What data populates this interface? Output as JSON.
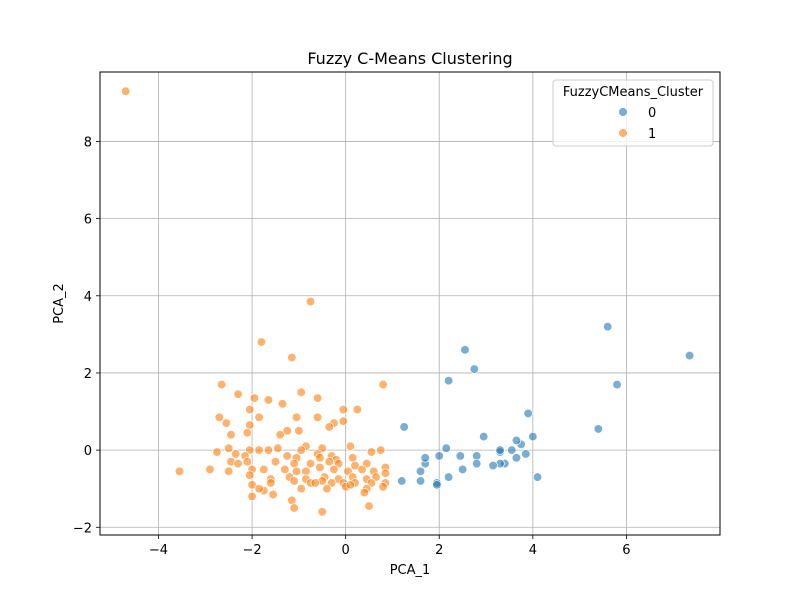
{
  "chart_data": {
    "type": "scatter",
    "title": "Fuzzy C-Means Clustering",
    "xlabel": "PCA_1",
    "ylabel": "PCA_2",
    "xlim": [
      -5.25,
      8.0
    ],
    "ylim": [
      -2.2,
      9.8
    ],
    "xticks": [
      -4,
      -2,
      0,
      2,
      4,
      6
    ],
    "yticks": [
      -2,
      0,
      2,
      4,
      6,
      8
    ],
    "tick_labels_x": [
      "−4",
      "−2",
      "0",
      "2",
      "4",
      "6"
    ],
    "tick_labels_y": [
      "−2",
      "0",
      "2",
      "4",
      "6",
      "8"
    ],
    "grid": true,
    "legend": {
      "title": "FuzzyCMeans_Cluster",
      "placement": "top-right",
      "entries": [
        {
          "label": "0",
          "color": "#1f77b4"
        },
        {
          "label": "1",
          "color": "#ff7f0e"
        }
      ]
    },
    "series": [
      {
        "name": "0",
        "color": "#1f77b4",
        "points": [
          [
            7.35,
            2.45
          ],
          [
            5.6,
            3.2
          ],
          [
            5.8,
            1.7
          ],
          [
            5.4,
            0.55
          ],
          [
            4.1,
            -0.7
          ],
          [
            4.0,
            0.35
          ],
          [
            3.9,
            0.95
          ],
          [
            3.85,
            -0.1
          ],
          [
            3.75,
            0.15
          ],
          [
            3.65,
            0.25
          ],
          [
            3.65,
            -0.2
          ],
          [
            3.55,
            0.0
          ],
          [
            3.4,
            -0.35
          ],
          [
            3.3,
            -0.35
          ],
          [
            3.3,
            -0.05
          ],
          [
            3.3,
            0.0
          ],
          [
            3.15,
            -0.4
          ],
          [
            2.95,
            0.35
          ],
          [
            2.8,
            -0.15
          ],
          [
            2.8,
            -0.35
          ],
          [
            2.75,
            2.1
          ],
          [
            2.55,
            2.6
          ],
          [
            2.5,
            -0.5
          ],
          [
            2.45,
            -0.15
          ],
          [
            2.2,
            1.8
          ],
          [
            2.2,
            -0.7
          ],
          [
            2.15,
            0.05
          ],
          [
            2.0,
            -0.15
          ],
          [
            1.95,
            -0.85
          ],
          [
            1.95,
            -0.9
          ],
          [
            1.7,
            -0.35
          ],
          [
            1.7,
            -0.2
          ],
          [
            1.6,
            -0.55
          ],
          [
            1.6,
            -0.8
          ],
          [
            1.25,
            0.6
          ],
          [
            1.2,
            -0.8
          ]
        ]
      },
      {
        "name": "1",
        "color": "#ff7f0e",
        "points": [
          [
            -4.7,
            9.3
          ],
          [
            -0.75,
            3.85
          ],
          [
            -1.8,
            2.8
          ],
          [
            -1.15,
            2.4
          ],
          [
            -2.65,
            1.7
          ],
          [
            0.8,
            1.7
          ],
          [
            -2.3,
            1.45
          ],
          [
            -1.95,
            1.35
          ],
          [
            -1.65,
            1.3
          ],
          [
            -0.95,
            1.5
          ],
          [
            -0.6,
            1.35
          ],
          [
            -1.35,
            1.2
          ],
          [
            -2.05,
            1.05
          ],
          [
            -0.05,
            1.05
          ],
          [
            0.25,
            1.05
          ],
          [
            -2.7,
            0.85
          ],
          [
            -1.85,
            0.85
          ],
          [
            -1.05,
            0.85
          ],
          [
            -0.6,
            0.85
          ],
          [
            -0.25,
            0.7
          ],
          [
            -0.05,
            0.75
          ],
          [
            -2.55,
            0.7
          ],
          [
            -2.05,
            0.65
          ],
          [
            -0.35,
            0.6
          ],
          [
            -2.45,
            0.4
          ],
          [
            -2.1,
            0.45
          ],
          [
            -1.25,
            0.5
          ],
          [
            -1.0,
            0.5
          ],
          [
            -1.4,
            0.4
          ],
          [
            0.1,
            0.1
          ],
          [
            -0.5,
            0.05
          ],
          [
            -0.85,
            0.1
          ],
          [
            -2.5,
            0.05
          ],
          [
            -2.05,
            0.0
          ],
          [
            -1.85,
            0.0
          ],
          [
            -1.65,
            0.0
          ],
          [
            -1.45,
            0.05
          ],
          [
            -0.95,
            0.0
          ],
          [
            -0.6,
            -0.1
          ],
          [
            -0.3,
            -0.15
          ],
          [
            0.55,
            -0.05
          ],
          [
            0.75,
            0.0
          ],
          [
            -2.75,
            -0.05
          ],
          [
            -2.35,
            -0.1
          ],
          [
            -2.15,
            -0.15
          ],
          [
            -1.25,
            -0.15
          ],
          [
            -1.05,
            -0.2
          ],
          [
            -0.55,
            -0.2
          ],
          [
            -0.2,
            -0.25
          ],
          [
            0.15,
            -0.2
          ],
          [
            -2.45,
            -0.3
          ],
          [
            -2.3,
            -0.35
          ],
          [
            -2.1,
            -0.3
          ],
          [
            -1.5,
            -0.3
          ],
          [
            -1.1,
            -0.35
          ],
          [
            -0.75,
            -0.35
          ],
          [
            -0.35,
            -0.3
          ],
          [
            -0.15,
            -0.35
          ],
          [
            0.2,
            -0.4
          ],
          [
            0.45,
            -0.35
          ],
          [
            0.85,
            -0.45
          ],
          [
            -2.9,
            -0.5
          ],
          [
            -2.5,
            -0.55
          ],
          [
            -2.0,
            -0.5
          ],
          [
            -1.75,
            -0.5
          ],
          [
            -1.3,
            -0.5
          ],
          [
            -1.05,
            -0.55
          ],
          [
            -0.85,
            -0.55
          ],
          [
            -0.55,
            -0.45
          ],
          [
            -0.25,
            -0.5
          ],
          [
            0.05,
            -0.55
          ],
          [
            0.35,
            -0.5
          ],
          [
            0.6,
            -0.55
          ],
          [
            0.85,
            -0.6
          ],
          [
            -3.55,
            -0.55
          ],
          [
            -2.05,
            -0.65
          ],
          [
            -1.6,
            -0.75
          ],
          [
            -1.2,
            -0.7
          ],
          [
            -0.85,
            -0.75
          ],
          [
            -0.45,
            -0.7
          ],
          [
            -0.15,
            -0.75
          ],
          [
            0.15,
            -0.7
          ],
          [
            0.45,
            -0.75
          ],
          [
            0.65,
            -0.7
          ],
          [
            -2.0,
            -0.9
          ],
          [
            -1.6,
            -0.85
          ],
          [
            -1.1,
            -0.8
          ],
          [
            -0.75,
            -0.85
          ],
          [
            -0.5,
            -0.8
          ],
          [
            -0.3,
            -0.85
          ],
          [
            -0.05,
            -0.85
          ],
          [
            0.2,
            -0.85
          ],
          [
            0.55,
            -0.85
          ],
          [
            0.85,
            -0.85
          ],
          [
            -1.75,
            -1.05
          ],
          [
            -1.55,
            -1.15
          ],
          [
            -0.95,
            -1.0
          ],
          [
            -0.65,
            -0.85
          ],
          [
            0.0,
            -0.95
          ],
          [
            0.45,
            -1.0
          ],
          [
            0.8,
            -0.95
          ],
          [
            -2.0,
            -1.2
          ],
          [
            -1.85,
            -1.0
          ],
          [
            -1.15,
            -1.3
          ],
          [
            -1.1,
            -1.5
          ],
          [
            -0.5,
            -1.6
          ],
          [
            0.5,
            -1.45
          ],
          [
            0.4,
            -1.1
          ],
          [
            -0.4,
            -1.0
          ],
          [
            0.1,
            -0.9
          ]
        ]
      }
    ]
  }
}
